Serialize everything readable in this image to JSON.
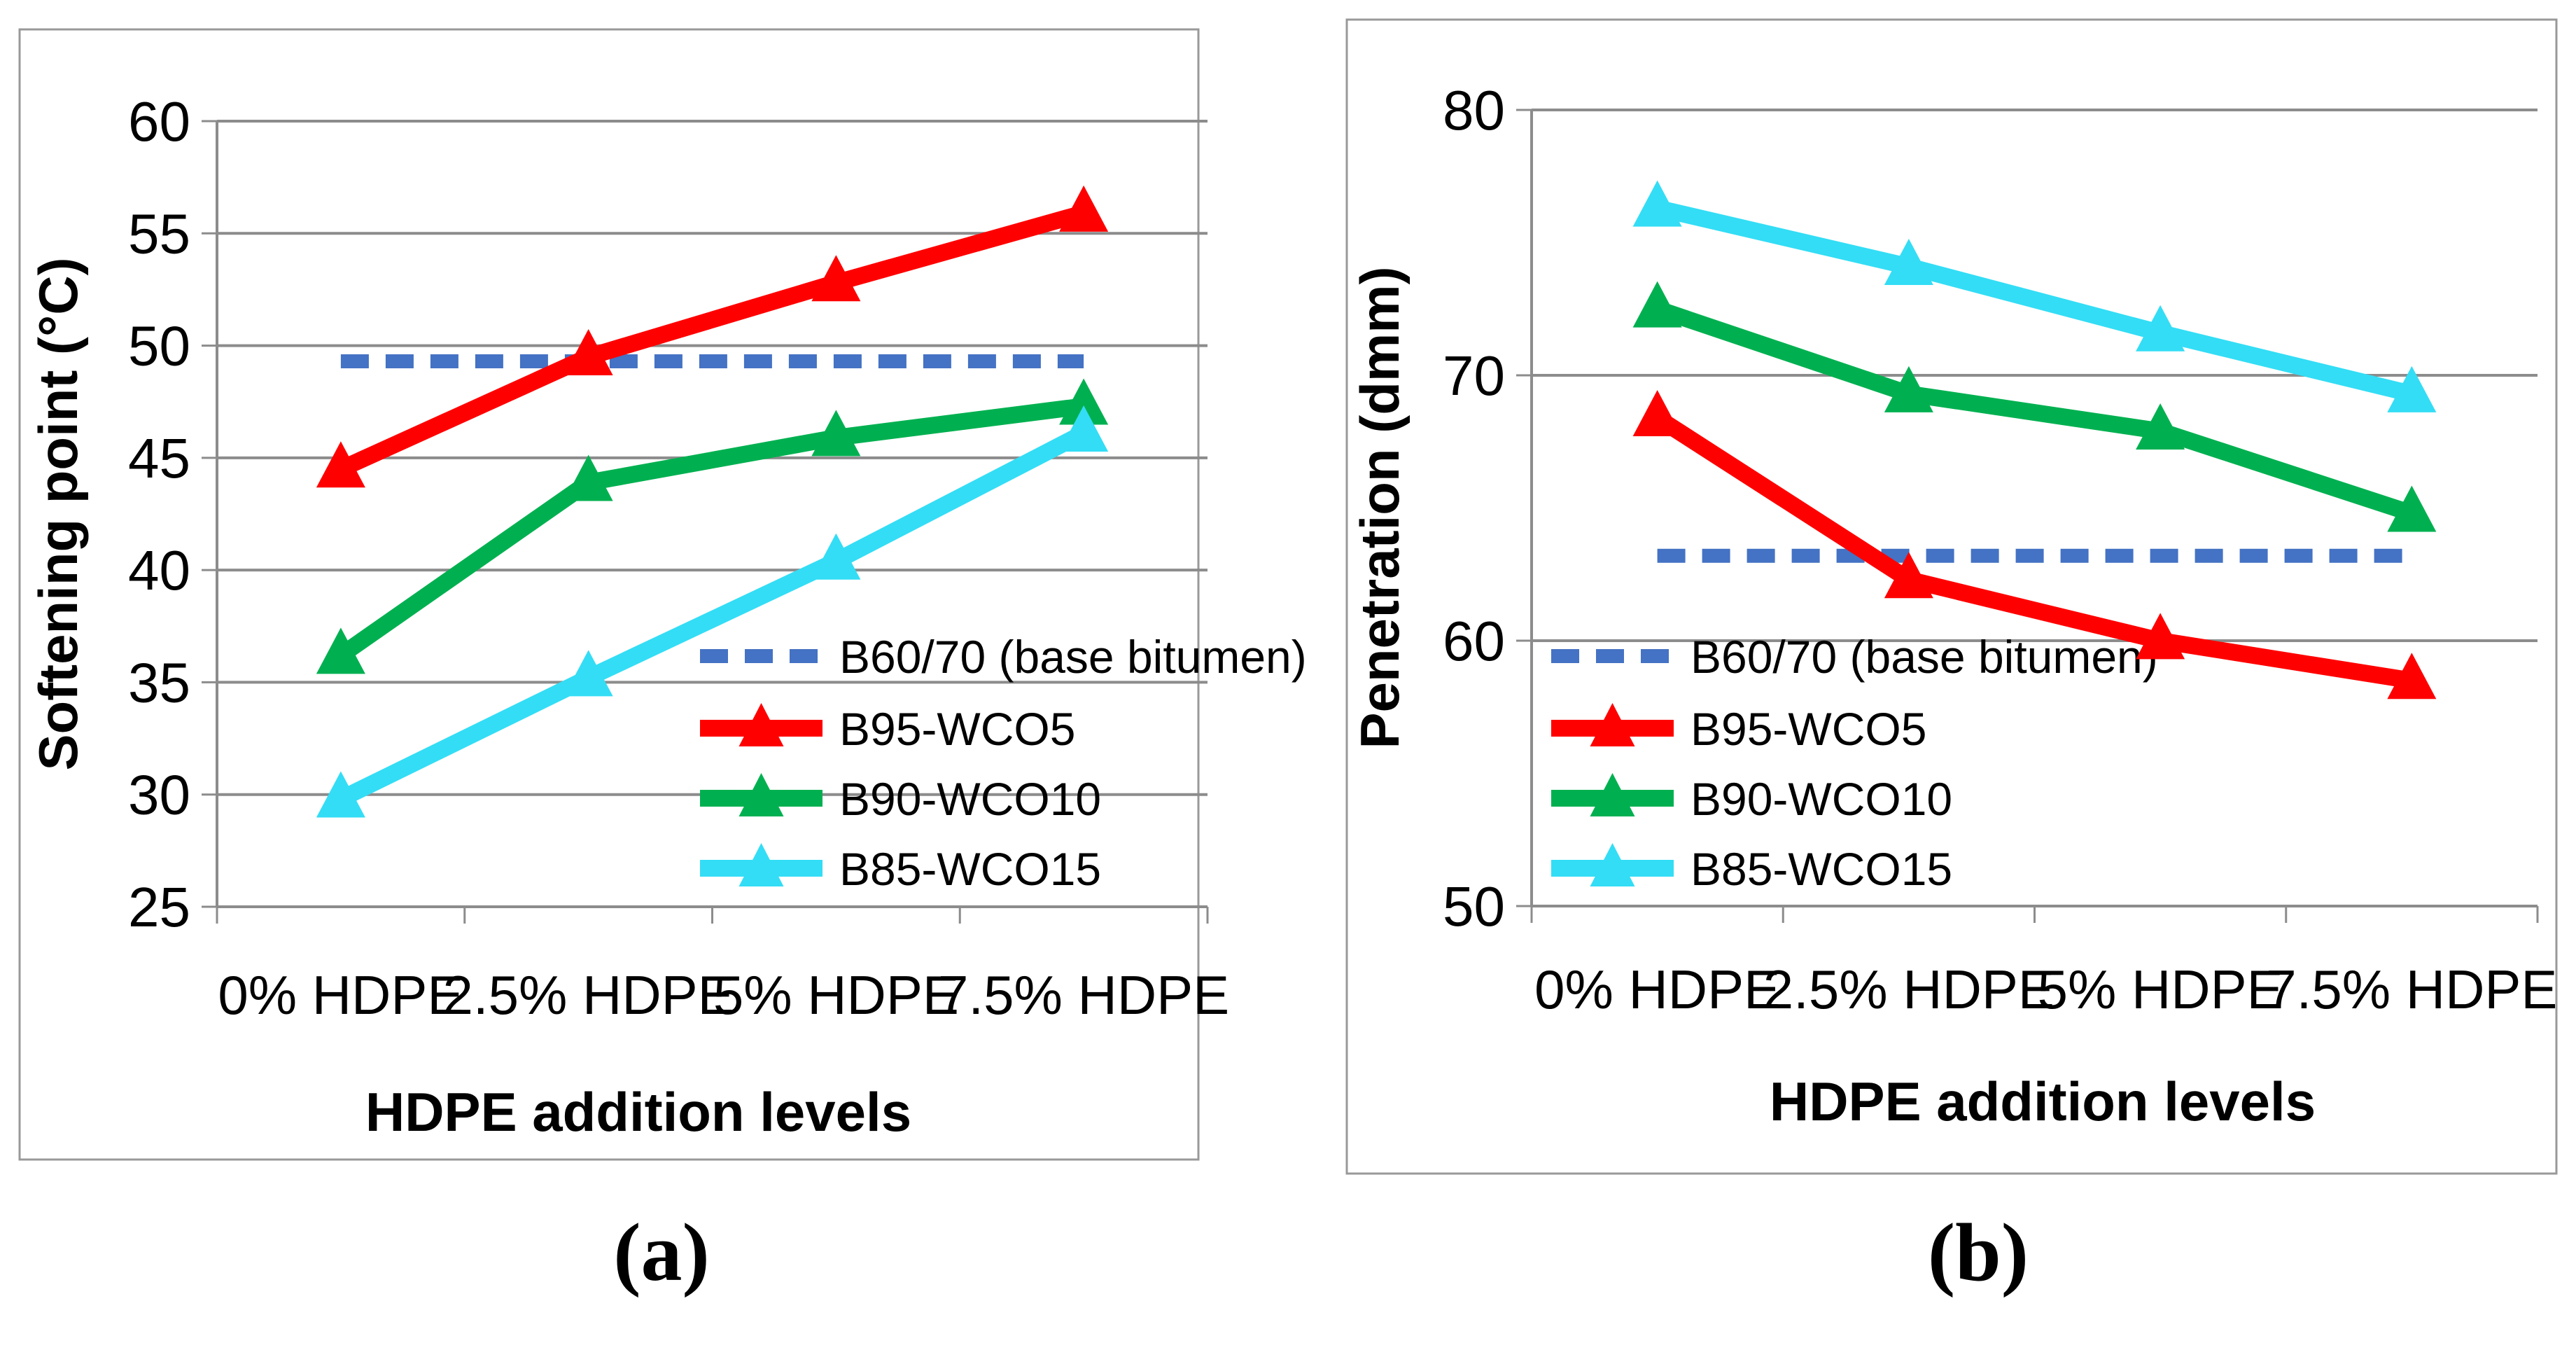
{
  "chart_data": [
    {
      "type": "line",
      "panel_label": "(a)",
      "title": "",
      "xlabel": "HDPE addition levels",
      "ylabel": "Softening point (°C)",
      "ylim": [
        25,
        60
      ],
      "yticks": [
        25,
        30,
        35,
        40,
        45,
        50,
        55,
        60
      ],
      "grid": true,
      "legend_position": "bottom-right",
      "categories": [
        "0% HDPE",
        "2.5% HDPE",
        "5% HDPE",
        "7.5% HDPE"
      ],
      "series": [
        {
          "name": "B60/70 (base bitumen)",
          "color": "#4472c4",
          "style": "dashed",
          "marker": "none",
          "values": [
            49.3,
            49.3,
            49.3,
            49.3
          ]
        },
        {
          "name": "B95-WCO5",
          "color": "#ff0000",
          "style": "solid",
          "marker": "triangle",
          "values": [
            44.5,
            49.5,
            52.8,
            55.9
          ]
        },
        {
          "name": "B90-WCO10",
          "color": "#00b050",
          "style": "solid",
          "marker": "triangle",
          "values": [
            36.2,
            43.9,
            45.9,
            47.3
          ]
        },
        {
          "name": "B85-WCO15",
          "color": "#33ddf5",
          "style": "solid",
          "marker": "triangle",
          "values": [
            29.8,
            35.2,
            40.4,
            46.1
          ]
        }
      ]
    },
    {
      "type": "line",
      "panel_label": "(b)",
      "title": "",
      "xlabel": "HDPE addition levels",
      "ylabel": "Penetration (dmm)",
      "ylim": [
        50,
        80
      ],
      "yticks": [
        50,
        60,
        70,
        80
      ],
      "grid": true,
      "legend_position": "bottom-left",
      "categories": [
        "0% HDPE",
        "2.5% HDPE",
        "5% HDPE",
        "7.5% HDPE"
      ],
      "series": [
        {
          "name": "B60/70 (base bitumen)",
          "color": "#4472c4",
          "style": "dashed",
          "marker": "none",
          "values": [
            63.2,
            63.2,
            63.2,
            63.2
          ]
        },
        {
          "name": "B95-WCO5",
          "color": "#ff0000",
          "style": "solid",
          "marker": "triangle",
          "values": [
            68.4,
            62.3,
            60.0,
            58.5
          ]
        },
        {
          "name": "B90-WCO10",
          "color": "#00b050",
          "style": "solid",
          "marker": "triangle",
          "values": [
            72.5,
            69.3,
            67.9,
            64.8
          ]
        },
        {
          "name": "B85-WCO15",
          "color": "#33ddf5",
          "style": "solid",
          "marker": "triangle",
          "values": [
            76.3,
            74.1,
            71.6,
            69.3
          ]
        }
      ]
    }
  ]
}
